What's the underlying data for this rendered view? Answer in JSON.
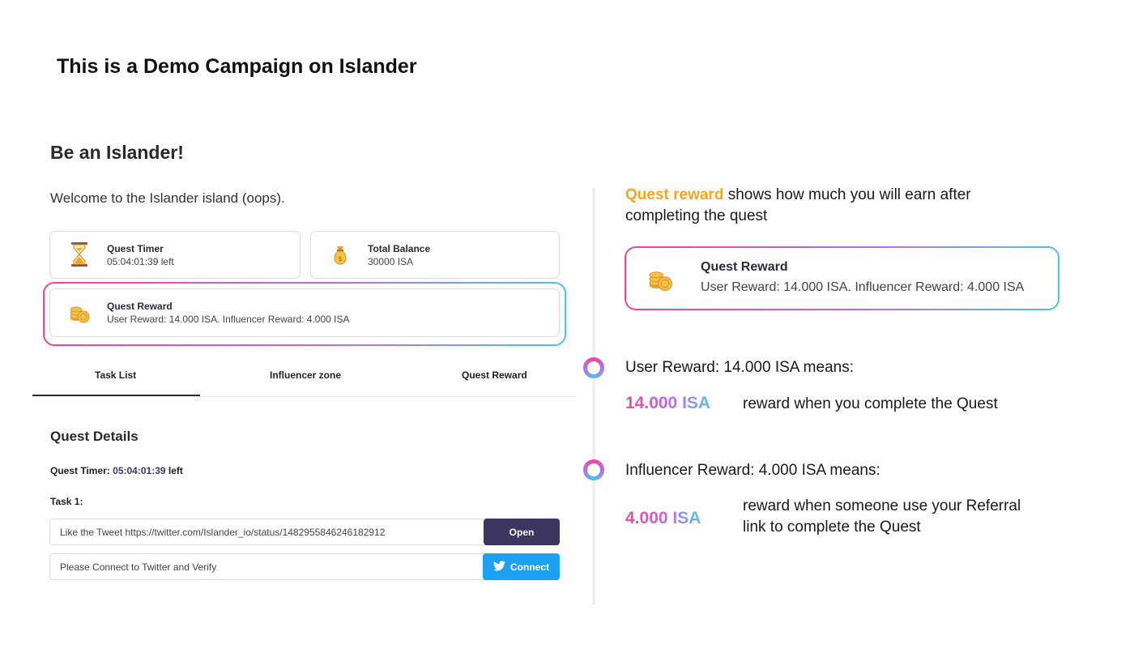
{
  "header": {
    "title": "This is a Demo Campaign on Islander"
  },
  "quest": {
    "title": "Be an Islander!",
    "welcome": "Welcome to the Islander island (oops).",
    "timer_card": {
      "title": "Quest Timer",
      "value": "05:04:01:39 left",
      "icon": "hourglass-icon"
    },
    "balance_card": {
      "title": "Total Balance",
      "value": "30000 ISA",
      "icon": "money-bag-icon"
    },
    "reward_card": {
      "title": "Quest Reward",
      "value": "User Reward: 14.000 ISA. Influencer Reward: 4.000 ISA",
      "icon": "coins-icon"
    }
  },
  "tabs": [
    {
      "label": "Task List",
      "active": true
    },
    {
      "label": "Influencer zone",
      "active": false
    },
    {
      "label": "Quest Reward",
      "active": false
    }
  ],
  "details": {
    "title": "Quest Details",
    "timer_label": "Quest Timer:",
    "timer_value": "05:04:01:39",
    "timer_suffix": "left",
    "task_label": "Task 1:",
    "tasks": [
      {
        "text": "Like the Tweet https://twitter.com/Islander_io/status/1482955846246182912",
        "button": "Open"
      },
      {
        "text": "Please Connect to Twitter and Verify",
        "button": "Connect",
        "icon": "twitter-icon"
      }
    ]
  },
  "explainer": {
    "intro_highlight": "Quest reward",
    "intro_line1": "shows how much  you will earn after",
    "intro_line2": "completing the quest",
    "card": {
      "title": "Quest Reward",
      "value": "User Reward: 14.000 ISA. Influencer Reward: 4.000 ISA"
    },
    "user": {
      "heading": "User Reward: 14.000 ISA means:",
      "amount": "14.000 ISA",
      "description": "reward when you complete the Quest"
    },
    "influencer": {
      "heading": "Influencer Reward: 4.000 ISA means:",
      "amount": "4.000 ISA",
      "description_line1": "reward when someone use your Referral",
      "description_line2": "link to complete the Quest"
    }
  },
  "colors": {
    "primary_dark": "#3b3560",
    "twitter_blue": "#1da1f2",
    "accent_orange": "#f5a623",
    "gradient_pink": "#f0449a",
    "gradient_blue": "#4cc2ef"
  }
}
